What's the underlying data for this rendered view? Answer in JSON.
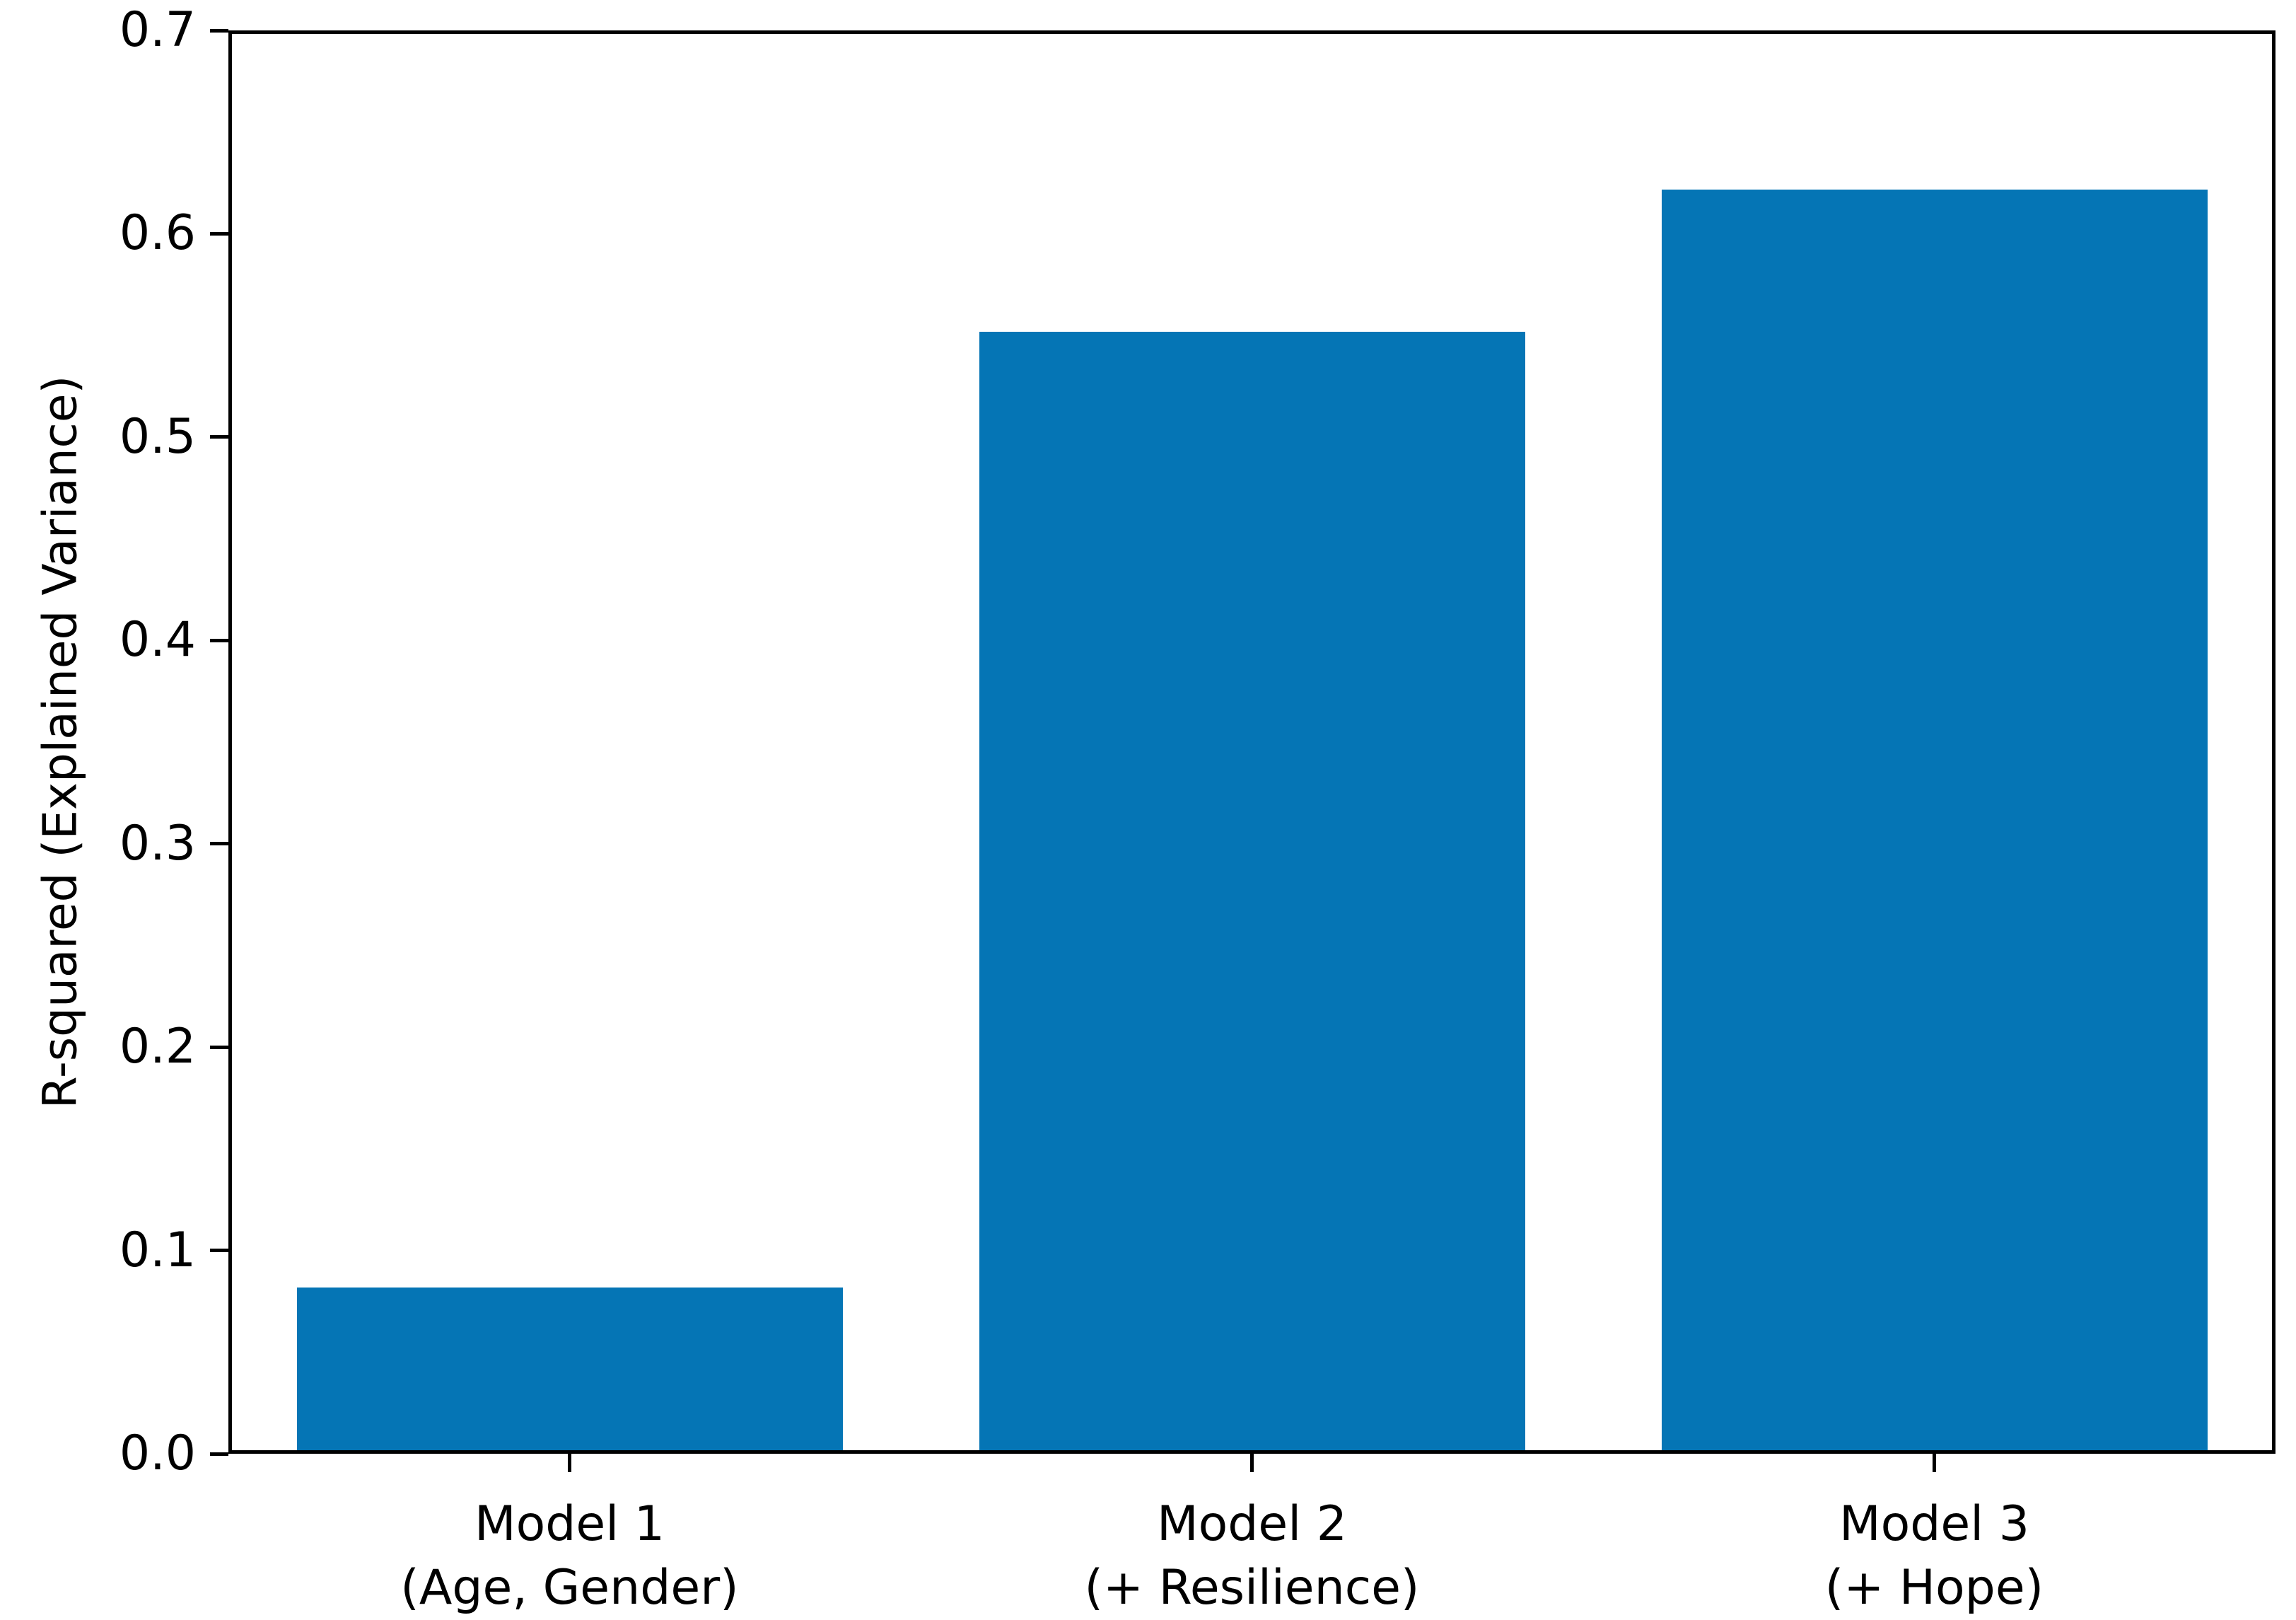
{
  "figure": {
    "background_color": "#ffffff",
    "axis_color": "#000000"
  },
  "chart_data": {
    "type": "bar",
    "title": "",
    "xlabel": "",
    "ylabel": "R-squared (Explained Variance)",
    "categories": [
      "Model 1",
      "Model 2",
      "Model 3"
    ],
    "category_sublabels": [
      "(Age, Gender)",
      "(+ Resilience)",
      "(+ Hope)"
    ],
    "values": [
      0.08,
      0.55,
      0.62
    ],
    "series": [
      {
        "name": "R-squared",
        "values": [
          0.08,
          0.55,
          0.62
        ]
      }
    ],
    "ylim": [
      0.0,
      0.7
    ],
    "yticks": [
      0.0,
      0.1,
      0.2,
      0.3,
      0.4,
      0.5,
      0.6,
      0.7
    ],
    "ytick_decimals": 1,
    "bar_color": "#0575b5",
    "bar_width_fraction": 0.8,
    "grid": false,
    "legend_position": "none"
  }
}
